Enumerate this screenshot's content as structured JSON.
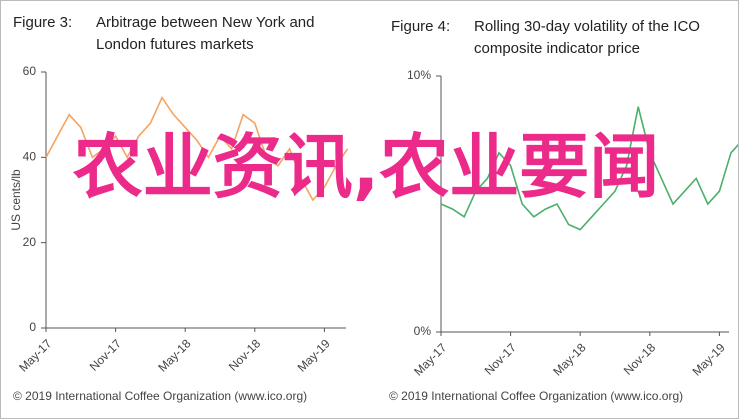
{
  "chart_data": [
    {
      "type": "line",
      "figure": "Figure 3:",
      "title": "Arbitrage between New York and London futures markets",
      "ylabel": "US cents/lb",
      "categories": [
        "May-17",
        null,
        null,
        null,
        null,
        null,
        "Nov-17",
        null,
        null,
        null,
        null,
        null,
        "May-18",
        null,
        null,
        null,
        null,
        null,
        "Nov-18",
        null,
        null,
        null,
        null,
        null,
        "May-19",
        null,
        null
      ],
      "series": [
        {
          "name": "Arbitrage",
          "color": "#f4a460",
          "values": [
            40,
            45,
            50,
            47,
            40,
            42,
            45,
            40,
            45,
            48,
            54,
            50,
            47,
            44,
            40,
            45,
            42,
            50,
            48,
            40,
            38,
            42,
            35,
            30,
            33,
            38,
            42
          ]
        }
      ],
      "ylim": [
        0,
        60
      ],
      "yticks": [
        0,
        20,
        40,
        60
      ],
      "source": "© 2019 International Coffee Organization (www.ico.org)"
    },
    {
      "type": "line",
      "figure": "Figure 4:",
      "title": "Rolling 30-day volatility of the ICO composite indicator price",
      "categories": [
        "May-17",
        null,
        null,
        null,
        null,
        null,
        "Nov-17",
        null,
        null,
        null,
        null,
        null,
        "May-18",
        null,
        null,
        null,
        null,
        null,
        "Nov-18",
        null,
        null,
        null,
        null,
        null,
        "May-19",
        null,
        null
      ],
      "series": [
        {
          "name": "Volatility",
          "color": "#4caf6a",
          "values": [
            5,
            4.8,
            4.5,
            5.5,
            6,
            7,
            6.5,
            5,
            4.5,
            4.8,
            5,
            4.2,
            4,
            4.5,
            5,
            5.5,
            6.5,
            8.8,
            7,
            6,
            5,
            5.5,
            6,
            5,
            5.5,
            7,
            7.5
          ]
        }
      ],
      "ylim": [
        0,
        10
      ],
      "yticks": [
        {
          "value": 0,
          "label": "0%"
        },
        {
          "value": 10,
          "label": "10%"
        }
      ],
      "source": "© 2019 International Coffee Organization (www.ico.org)"
    }
  ],
  "overlay_text": "农业资讯,农业要闻"
}
